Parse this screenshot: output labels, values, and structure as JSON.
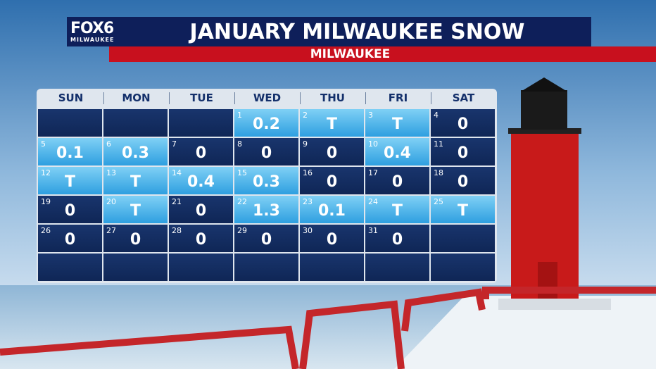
{
  "header": {
    "logo": "FOX6",
    "logo_sub": "MILWAUKEE",
    "title": "JANUARY MILWAUKEE SNOW",
    "subtitle": "MILWAUKEE"
  },
  "calendar": {
    "days": [
      "SUN",
      "MON",
      "TUE",
      "WED",
      "THU",
      "FRI",
      "SAT"
    ],
    "weeks": [
      [
        null,
        null,
        null,
        {
          "day": 1,
          "value": "0.2"
        },
        {
          "day": 2,
          "value": "T"
        },
        {
          "day": 3,
          "value": "T"
        },
        {
          "day": 4,
          "value": "0"
        }
      ],
      [
        {
          "day": 5,
          "value": "0.1"
        },
        {
          "day": 6,
          "value": "0.3"
        },
        {
          "day": 7,
          "value": "0"
        },
        {
          "day": 8,
          "value": "0"
        },
        {
          "day": 9,
          "value": "0"
        },
        {
          "day": 10,
          "value": "0.4"
        },
        {
          "day": 11,
          "value": "0"
        }
      ],
      [
        {
          "day": 12,
          "value": "T"
        },
        {
          "day": 13,
          "value": "T"
        },
        {
          "day": 14,
          "value": "0.4"
        },
        {
          "day": 15,
          "value": "0.3"
        },
        {
          "day": 16,
          "value": "0"
        },
        {
          "day": 17,
          "value": "0"
        },
        {
          "day": 18,
          "value": "0"
        }
      ],
      [
        {
          "day": 19,
          "value": "0"
        },
        {
          "day": 20,
          "value": "T"
        },
        {
          "day": 21,
          "value": "0"
        },
        {
          "day": 22,
          "value": "1.3"
        },
        {
          "day": 23,
          "value": "0.1"
        },
        {
          "day": 24,
          "value": "T"
        },
        {
          "day": 25,
          "value": "T"
        }
      ],
      [
        {
          "day": 26,
          "value": "0"
        },
        {
          "day": 27,
          "value": "0"
        },
        {
          "day": 28,
          "value": "0"
        },
        {
          "day": 29,
          "value": "0"
        },
        {
          "day": 30,
          "value": "0"
        },
        {
          "day": 31,
          "value": "0"
        },
        null
      ],
      [
        null,
        null,
        null,
        null,
        null,
        null,
        null
      ]
    ]
  }
}
